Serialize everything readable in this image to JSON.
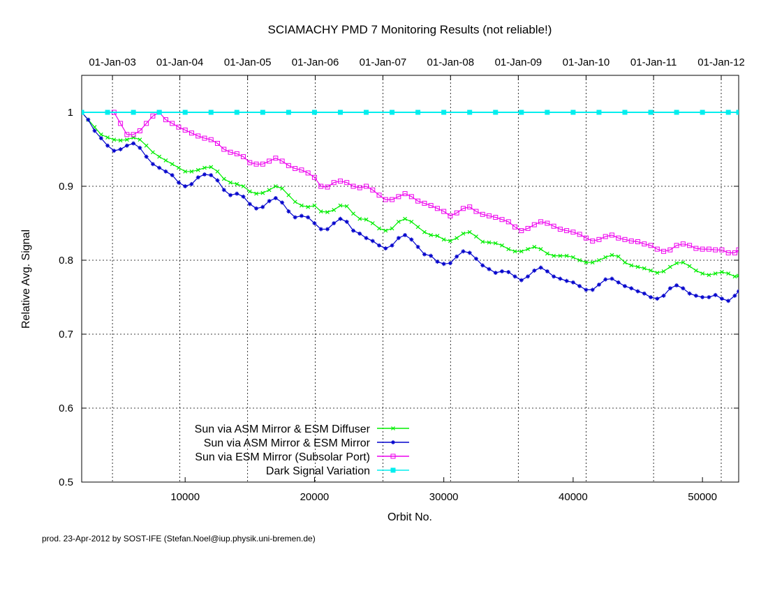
{
  "chart_data": {
    "type": "line",
    "title": "SCIAMACHY PMD 7 Monitoring Results (not reliable!)",
    "xlabel": "Orbit No.",
    "ylabel": "Relative Avg. Signal",
    "xlim": [
      2000,
      52800
    ],
    "ylim": [
      0.5,
      1.05
    ],
    "x_ticks": [
      10000,
      20000,
      30000,
      40000,
      50000
    ],
    "x_tick_labels": [
      "10000",
      "20000",
      "30000",
      "40000",
      "50000"
    ],
    "y_ticks": [
      0.5,
      0.6,
      0.7,
      0.8,
      0.9,
      1.0
    ],
    "y_tick_labels": [
      "0.5",
      "0.6",
      "0.7",
      "0.8",
      "0.9",
      "1"
    ],
    "top_axis_ticks": [
      4380,
      9590,
      14830,
      20060,
      25290,
      30520,
      35760,
      41000,
      46220,
      51450
    ],
    "top_axis_labels": [
      "01-Jan-03",
      "01-Jan-04",
      "01-Jan-05",
      "01-Jan-06",
      "01-Jan-07",
      "01-Jan-08",
      "01-Jan-09",
      "01-Jan-10",
      "01-Jan-11",
      "01-Jan-12"
    ],
    "grid": true,
    "legend_position": "bottom-left",
    "footer": "prod. 23-Apr-2012 by SOST-IFE (Stefan.Noel@iup.physik.uni-bremen.de)",
    "series": [
      {
        "name": "Sun via ASM Mirror & ESM Diffuser",
        "color": "#00ee00",
        "marker": "x",
        "x": [
          2000,
          2500,
          3000,
          3500,
          4000,
          4500,
          5000,
          5500,
          6000,
          6500,
          7000,
          7500,
          8000,
          8500,
          9000,
          9500,
          10000,
          10500,
          11000,
          11500,
          12000,
          12500,
          13000,
          13500,
          14000,
          14500,
          15000,
          15500,
          16000,
          16500,
          17000,
          17500,
          18000,
          18500,
          19000,
          19500,
          20000,
          20500,
          21000,
          21500,
          22000,
          22500,
          23000,
          23500,
          24000,
          24500,
          25000,
          25500,
          26000,
          26500,
          27000,
          27500,
          28000,
          28500,
          29000,
          29500,
          30000,
          30500,
          31000,
          31500,
          32000,
          32500,
          33000,
          33500,
          34000,
          34500,
          35000,
          35500,
          36000,
          36500,
          37000,
          37500,
          38000,
          38500,
          39000,
          39500,
          40000,
          40500,
          41000,
          41500,
          42000,
          42500,
          43000,
          43500,
          44000,
          44500,
          45000,
          45500,
          46000,
          46500,
          47000,
          47500,
          48000,
          48500,
          49000,
          49500,
          50000,
          50500,
          51000,
          51500,
          52000,
          52500,
          52800
        ],
        "y": [
          1.0,
          0.99,
          0.98,
          0.97,
          0.966,
          0.963,
          0.962,
          0.963,
          0.966,
          0.963,
          0.955,
          0.946,
          0.94,
          0.935,
          0.93,
          0.925,
          0.92,
          0.92,
          0.922,
          0.925,
          0.926,
          0.92,
          0.91,
          0.905,
          0.903,
          0.9,
          0.893,
          0.89,
          0.891,
          0.895,
          0.9,
          0.897,
          0.888,
          0.879,
          0.874,
          0.872,
          0.874,
          0.866,
          0.865,
          0.868,
          0.874,
          0.873,
          0.863,
          0.856,
          0.855,
          0.85,
          0.843,
          0.84,
          0.843,
          0.852,
          0.856,
          0.852,
          0.845,
          0.838,
          0.834,
          0.833,
          0.828,
          0.826,
          0.83,
          0.836,
          0.838,
          0.832,
          0.825,
          0.824,
          0.823,
          0.82,
          0.815,
          0.812,
          0.812,
          0.815,
          0.818,
          0.815,
          0.809,
          0.806,
          0.806,
          0.806,
          0.804,
          0.8,
          0.797,
          0.797,
          0.8,
          0.804,
          0.807,
          0.805,
          0.797,
          0.793,
          0.791,
          0.789,
          0.786,
          0.783,
          0.785,
          0.791,
          0.796,
          0.797,
          0.792,
          0.786,
          0.782,
          0.78,
          0.782,
          0.784,
          0.782,
          0.778,
          0.779
        ]
      },
      {
        "name": "Sun via ASM Mirror & ESM Mirror",
        "color": "#0000cc",
        "marker": "*",
        "x": [
          2000,
          2500,
          3000,
          3500,
          4000,
          4500,
          5000,
          5500,
          6000,
          6500,
          7000,
          7500,
          8000,
          8500,
          9000,
          9500,
          10000,
          10500,
          11000,
          11500,
          12000,
          12500,
          13000,
          13500,
          14000,
          14500,
          15000,
          15500,
          16000,
          16500,
          17000,
          17500,
          18000,
          18500,
          19000,
          19500,
          20000,
          20500,
          21000,
          21500,
          22000,
          22500,
          23000,
          23500,
          24000,
          24500,
          25000,
          25500,
          26000,
          26500,
          27000,
          27500,
          28000,
          28500,
          29000,
          29500,
          30000,
          30500,
          31000,
          31500,
          32000,
          32500,
          33000,
          33500,
          34000,
          34500,
          35000,
          35500,
          36000,
          36500,
          37000,
          37500,
          38000,
          38500,
          39000,
          39500,
          40000,
          40500,
          41000,
          41500,
          42000,
          42500,
          43000,
          43500,
          44000,
          44500,
          45000,
          45500,
          46000,
          46500,
          47000,
          47500,
          48000,
          48500,
          49000,
          49500,
          50000,
          50500,
          51000,
          51500,
          52000,
          52500,
          52800
        ],
        "y": [
          1.0,
          0.99,
          0.975,
          0.965,
          0.955,
          0.948,
          0.95,
          0.955,
          0.958,
          0.952,
          0.94,
          0.93,
          0.925,
          0.92,
          0.915,
          0.905,
          0.9,
          0.903,
          0.912,
          0.916,
          0.915,
          0.908,
          0.895,
          0.888,
          0.89,
          0.886,
          0.876,
          0.87,
          0.872,
          0.88,
          0.884,
          0.878,
          0.866,
          0.858,
          0.86,
          0.858,
          0.85,
          0.842,
          0.842,
          0.85,
          0.856,
          0.852,
          0.84,
          0.836,
          0.83,
          0.826,
          0.82,
          0.816,
          0.82,
          0.83,
          0.834,
          0.828,
          0.818,
          0.808,
          0.806,
          0.798,
          0.795,
          0.796,
          0.805,
          0.812,
          0.81,
          0.802,
          0.793,
          0.788,
          0.783,
          0.785,
          0.784,
          0.778,
          0.773,
          0.778,
          0.786,
          0.79,
          0.785,
          0.778,
          0.775,
          0.772,
          0.77,
          0.765,
          0.76,
          0.76,
          0.767,
          0.774,
          0.775,
          0.77,
          0.765,
          0.762,
          0.758,
          0.755,
          0.75,
          0.748,
          0.752,
          0.762,
          0.766,
          0.762,
          0.755,
          0.752,
          0.75,
          0.75,
          0.753,
          0.748,
          0.745,
          0.752,
          0.758
        ]
      },
      {
        "name": "Sun via ESM Mirror (Subsolar Port)",
        "color": "#ee00ee",
        "marker": "square-open",
        "x": [
          4500,
          5000,
          5500,
          6000,
          6500,
          7000,
          7500,
          8000,
          8500,
          9000,
          9500,
          10000,
          10500,
          11000,
          11500,
          12000,
          12500,
          13000,
          13500,
          14000,
          14500,
          15000,
          15500,
          16000,
          16500,
          17000,
          17500,
          18000,
          18500,
          19000,
          19500,
          20000,
          20500,
          21000,
          21500,
          22000,
          22500,
          23000,
          23500,
          24000,
          24500,
          25000,
          25500,
          26000,
          26500,
          27000,
          27500,
          28000,
          28500,
          29000,
          29500,
          30000,
          30500,
          31000,
          31500,
          32000,
          32500,
          33000,
          33500,
          34000,
          34500,
          35000,
          35500,
          36000,
          36500,
          37000,
          37500,
          38000,
          38500,
          39000,
          39500,
          40000,
          40500,
          41000,
          41500,
          42000,
          42500,
          43000,
          43500,
          44000,
          44500,
          45000,
          45500,
          46000,
          46500,
          47000,
          47500,
          48000,
          48500,
          49000,
          49500,
          50000,
          50500,
          51000,
          51500,
          52000,
          52500,
          52800
        ],
        "y": [
          1.0,
          0.985,
          0.97,
          0.97,
          0.975,
          0.985,
          0.995,
          1.0,
          0.99,
          0.985,
          0.98,
          0.976,
          0.972,
          0.968,
          0.965,
          0.963,
          0.958,
          0.95,
          0.946,
          0.944,
          0.94,
          0.932,
          0.93,
          0.93,
          0.934,
          0.938,
          0.934,
          0.928,
          0.924,
          0.922,
          0.918,
          0.912,
          0.9,
          0.899,
          0.905,
          0.907,
          0.905,
          0.9,
          0.898,
          0.9,
          0.895,
          0.888,
          0.882,
          0.882,
          0.886,
          0.89,
          0.886,
          0.88,
          0.877,
          0.874,
          0.87,
          0.866,
          0.86,
          0.864,
          0.87,
          0.872,
          0.866,
          0.862,
          0.86,
          0.858,
          0.855,
          0.852,
          0.845,
          0.84,
          0.843,
          0.848,
          0.852,
          0.85,
          0.846,
          0.842,
          0.84,
          0.838,
          0.835,
          0.83,
          0.826,
          0.828,
          0.832,
          0.834,
          0.83,
          0.828,
          0.826,
          0.825,
          0.822,
          0.82,
          0.815,
          0.812,
          0.814,
          0.82,
          0.822,
          0.82,
          0.816,
          0.815,
          0.815,
          0.814,
          0.814,
          0.81,
          0.81,
          0.814
        ]
      },
      {
        "name": "Dark Signal Variation",
        "color": "#00eeee",
        "marker": "square-filled",
        "x": [
          2000,
          4000,
          6000,
          8000,
          10000,
          12000,
          14000,
          16000,
          18000,
          20000,
          22000,
          24000,
          26000,
          28000,
          30000,
          32000,
          34000,
          36000,
          38000,
          40000,
          42000,
          44000,
          46000,
          48000,
          50000,
          52000,
          52800
        ],
        "y": [
          1.0,
          1.0,
          1.0,
          1.0,
          1.0,
          1.0,
          1.0,
          1.0,
          1.0,
          1.0,
          1.0,
          1.0,
          1.0,
          1.0,
          1.0,
          1.0,
          1.0,
          1.0,
          1.0,
          1.0,
          1.0,
          1.0,
          1.0,
          1.0,
          1.0,
          1.0,
          1.0
        ]
      }
    ]
  }
}
